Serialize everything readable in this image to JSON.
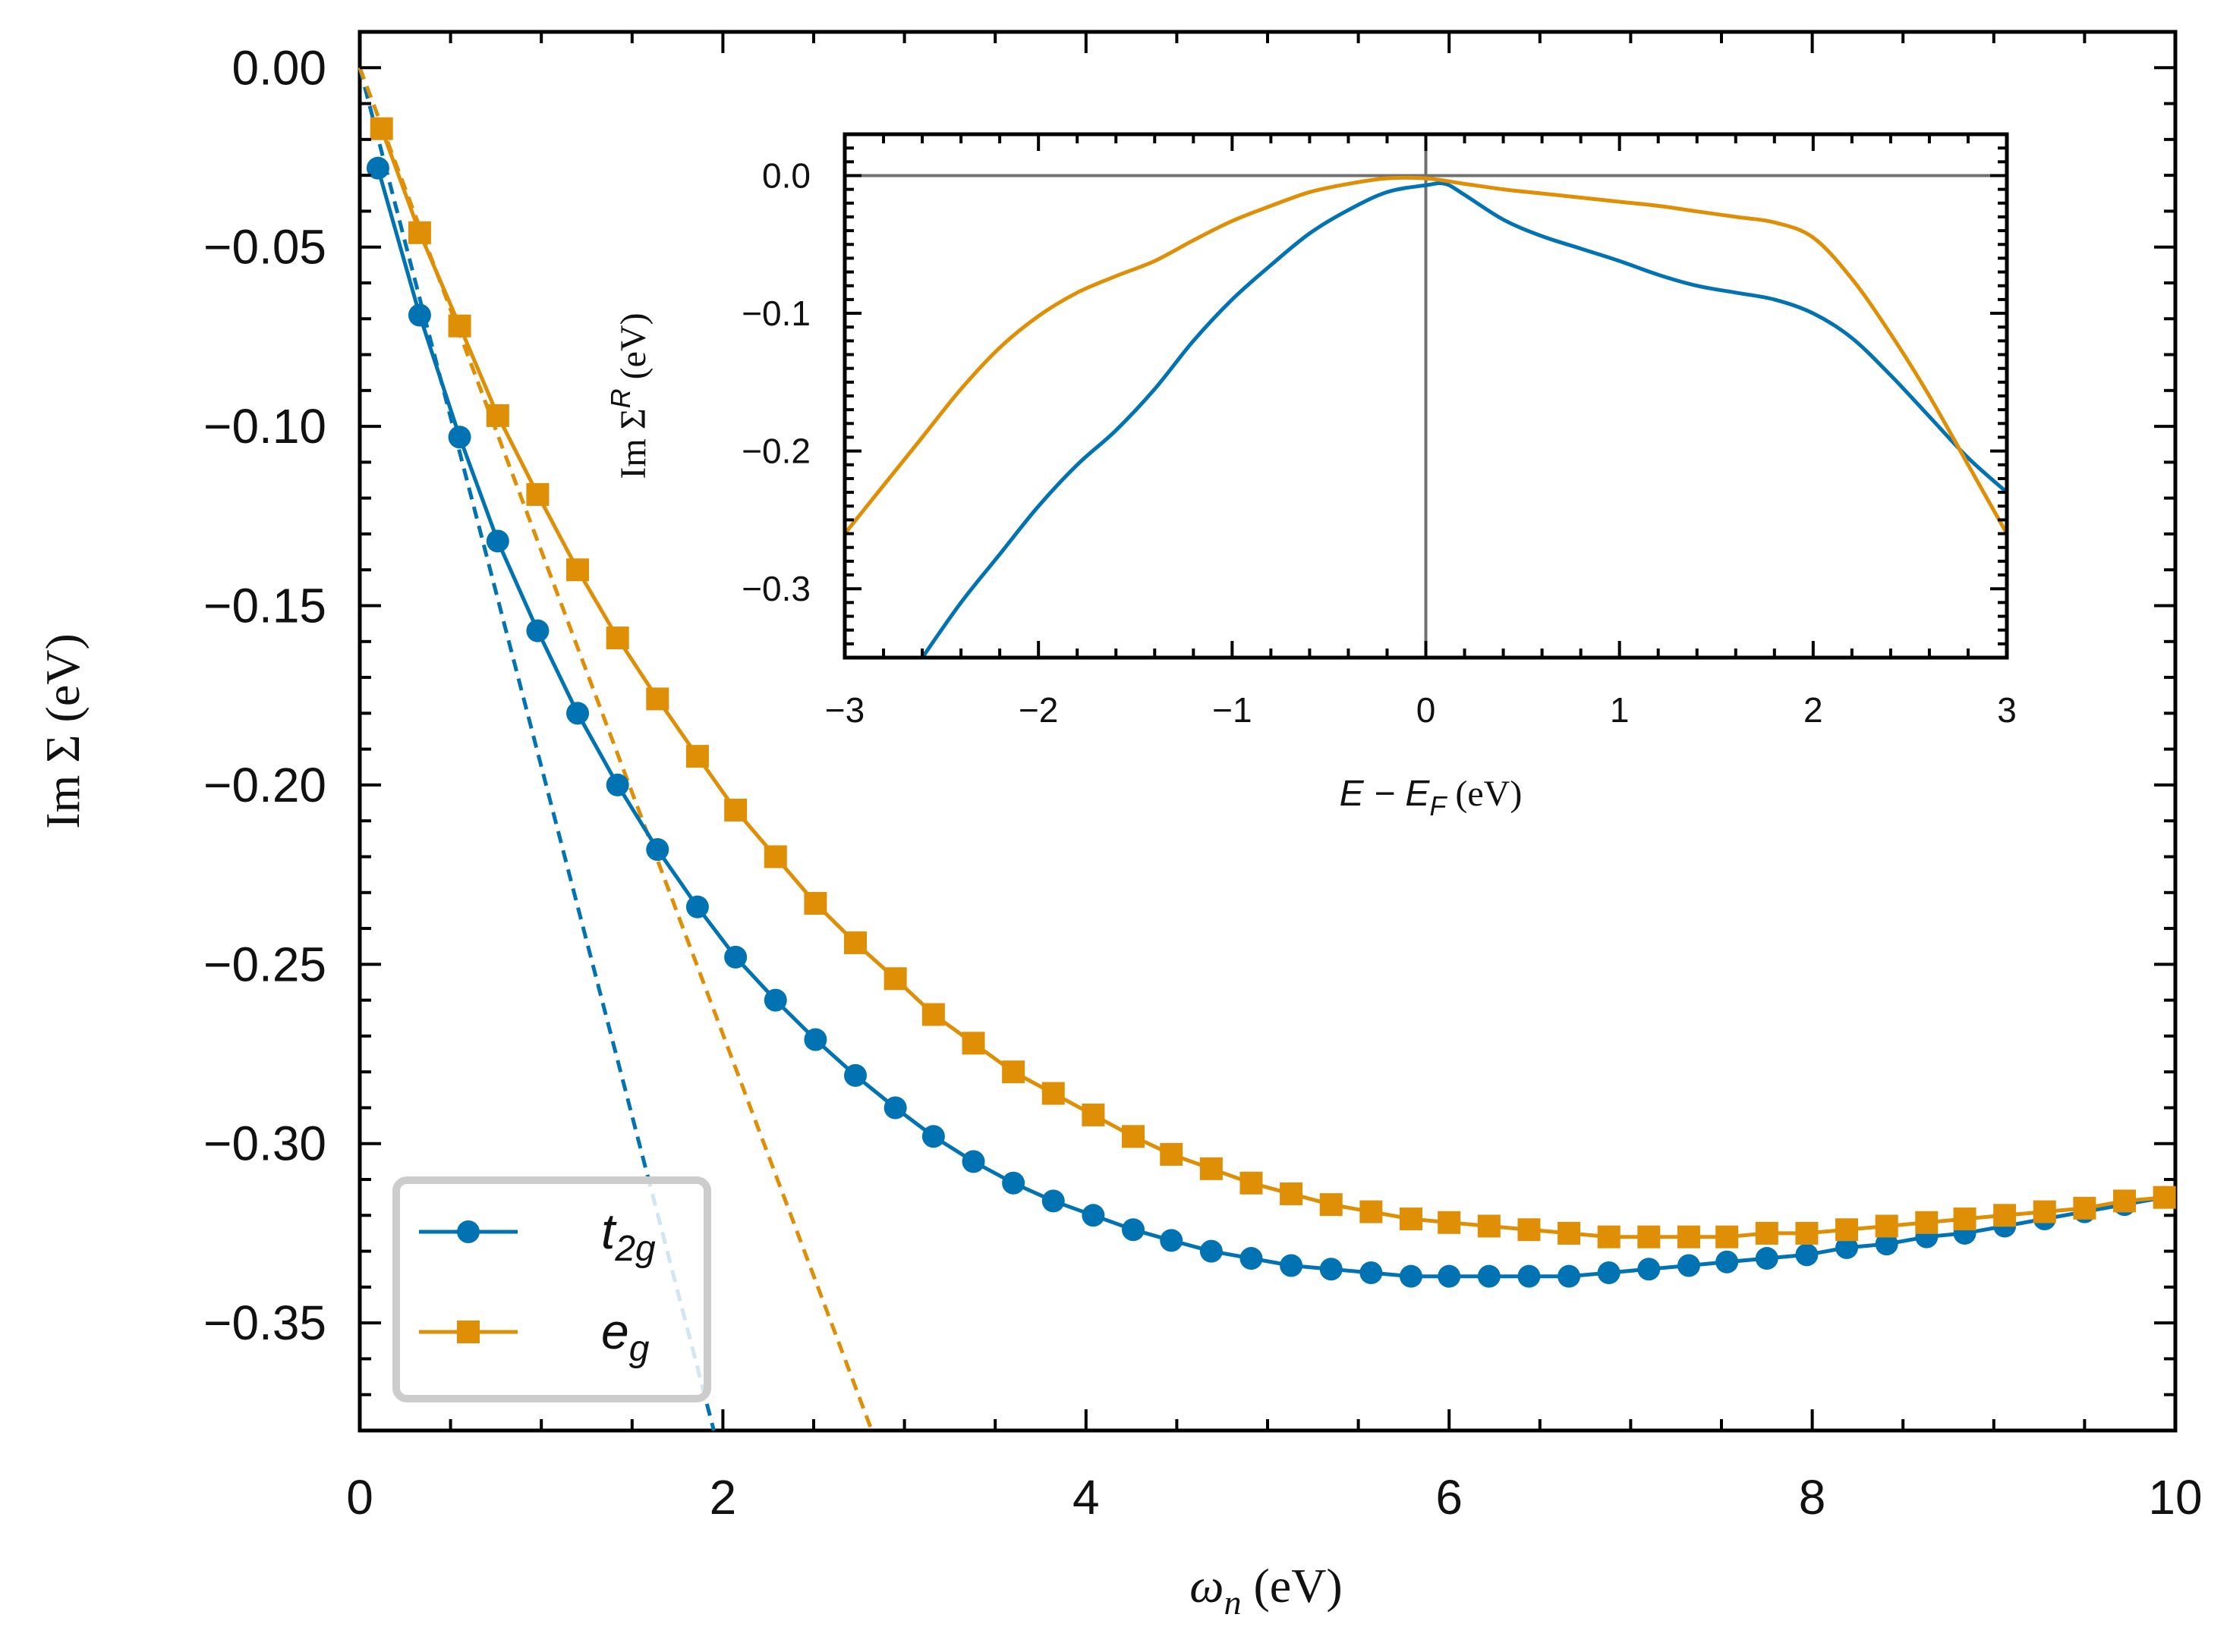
{
  "colors": {
    "t2g": "#0173b2",
    "eg": "#de8f05",
    "zero_lines": "#707070",
    "axes": "#000000"
  },
  "chart_data": [
    {
      "id": "main",
      "type": "line",
      "xlabel": {
        "symbol": "ω",
        "sub": "n",
        "unit": " (eV)"
      },
      "ylabel": "Im Σ (eV)",
      "xlim": [
        0,
        10
      ],
      "ylim": [
        -0.38,
        0.01
      ],
      "xticks": [
        0,
        2,
        4,
        6,
        8,
        10
      ],
      "xtick_labels": [
        "0",
        "2",
        "4",
        "6",
        "8",
        "10"
      ],
      "yticks": [
        0,
        -0.05,
        -0.1,
        -0.15,
        -0.2,
        -0.25,
        -0.3,
        -0.35
      ],
      "ytick_labels": [
        "0.00",
        "−0.05",
        "−0.10",
        "−0.15",
        "−0.20",
        "−0.25",
        "−0.30",
        "−0.35"
      ],
      "legend_position": "bottom-left",
      "series": [
        {
          "name": "t2g",
          "label_main": "t",
          "label_sub": "2g",
          "marker": "circle",
          "x": [
            0.1,
            0.33,
            0.55,
            0.76,
            0.98,
            1.2,
            1.42,
            1.64,
            1.86,
            2.07,
            2.29,
            2.51,
            2.73,
            2.95,
            3.16,
            3.38,
            3.6,
            3.82,
            4.04,
            4.26,
            4.47,
            4.69,
            4.91,
            5.13,
            5.35,
            5.57,
            5.79,
            6.0,
            6.22,
            6.44,
            6.66,
            6.88,
            7.1,
            7.32,
            7.53,
            7.75,
            7.97,
            8.19,
            8.41,
            8.63,
            8.84,
            9.06,
            9.28,
            9.5,
            9.72,
            9.94
          ],
          "values": [
            -0.028,
            -0.069,
            -0.103,
            -0.132,
            -0.157,
            -0.18,
            -0.2,
            -0.218,
            -0.234,
            -0.248,
            -0.26,
            -0.271,
            -0.281,
            -0.29,
            -0.298,
            -0.305,
            -0.311,
            -0.316,
            -0.32,
            -0.324,
            -0.327,
            -0.33,
            -0.332,
            -0.334,
            -0.335,
            -0.336,
            -0.337,
            -0.337,
            -0.337,
            -0.337,
            -0.337,
            -0.336,
            -0.335,
            -0.334,
            -0.333,
            -0.332,
            -0.331,
            -0.329,
            -0.328,
            -0.326,
            -0.325,
            -0.323,
            -0.321,
            -0.319,
            -0.317,
            -0.315
          ]
        },
        {
          "name": "eg",
          "label_main": "e",
          "label_sub": "g",
          "marker": "square",
          "x": [
            0.12,
            0.33,
            0.55,
            0.76,
            0.98,
            1.2,
            1.42,
            1.64,
            1.86,
            2.07,
            2.29,
            2.51,
            2.73,
            2.95,
            3.16,
            3.38,
            3.6,
            3.82,
            4.04,
            4.26,
            4.47,
            4.69,
            4.91,
            5.13,
            5.35,
            5.57,
            5.79,
            6.0,
            6.22,
            6.44,
            6.66,
            6.88,
            7.1,
            7.32,
            7.53,
            7.75,
            7.97,
            8.19,
            8.41,
            8.63,
            8.84,
            9.06,
            9.28,
            9.5,
            9.72,
            9.94
          ],
          "values": [
            -0.017,
            -0.046,
            -0.072,
            -0.097,
            -0.119,
            -0.14,
            -0.159,
            -0.176,
            -0.192,
            -0.207,
            -0.22,
            -0.233,
            -0.244,
            -0.254,
            -0.264,
            -0.272,
            -0.28,
            -0.286,
            -0.292,
            -0.298,
            -0.303,
            -0.307,
            -0.311,
            -0.314,
            -0.317,
            -0.319,
            -0.321,
            -0.322,
            -0.323,
            -0.324,
            -0.325,
            -0.326,
            -0.326,
            -0.326,
            -0.326,
            -0.325,
            -0.325,
            -0.324,
            -0.323,
            -0.322,
            -0.321,
            -0.32,
            -0.319,
            -0.318,
            -0.316,
            -0.315
          ]
        }
      ],
      "fits": [
        {
          "name": "t2g-fit",
          "series": "t2g",
          "x": [
            0,
            1.95
          ],
          "values": [
            0.0,
            -0.38
          ]
        },
        {
          "name": "eg-fit",
          "series": "eg",
          "x": [
            0,
            2.82
          ],
          "values": [
            0.0,
            -0.38
          ]
        }
      ]
    },
    {
      "id": "inset",
      "type": "line",
      "xlabel": {
        "text": "E − E",
        "sub": "F",
        "unit": " (eV)"
      },
      "ylabel": {
        "text": "Im Σ",
        "sup": "R",
        "unit": " (eV)"
      },
      "xlim": [
        -3,
        3
      ],
      "ylim": [
        -0.35,
        0.03
      ],
      "xticks": [
        -3,
        -2,
        -1,
        0,
        1,
        2,
        3
      ],
      "xtick_labels": [
        "−3",
        "−2",
        "−1",
        "0",
        "1",
        "2",
        "3"
      ],
      "yticks": [
        0.0,
        -0.1,
        -0.2,
        -0.3
      ],
      "ytick_labels": [
        "0.0",
        "−0.1",
        "−0.2",
        "−0.3"
      ],
      "series": [
        {
          "name": "t2g",
          "x": [
            -2.6,
            -2.4,
            -2.2,
            -2.0,
            -1.8,
            -1.6,
            -1.4,
            -1.2,
            -1.0,
            -0.8,
            -0.6,
            -0.4,
            -0.2,
            0.0,
            0.1,
            0.2,
            0.4,
            0.6,
            0.8,
            1.0,
            1.2,
            1.4,
            1.6,
            1.8,
            2.0,
            2.2,
            2.4,
            2.6,
            2.8,
            3.0
          ],
          "values": [
            -0.35,
            -0.31,
            -0.275,
            -0.24,
            -0.21,
            -0.185,
            -0.155,
            -0.12,
            -0.09,
            -0.065,
            -0.042,
            -0.025,
            -0.012,
            -0.007,
            -0.006,
            -0.014,
            -0.032,
            -0.044,
            -0.053,
            -0.062,
            -0.072,
            -0.08,
            -0.085,
            -0.09,
            -0.1,
            -0.118,
            -0.145,
            -0.175,
            -0.205,
            -0.23
          ]
        },
        {
          "name": "eg",
          "x": [
            -3.0,
            -2.8,
            -2.6,
            -2.4,
            -2.2,
            -2.0,
            -1.8,
            -1.6,
            -1.4,
            -1.2,
            -1.0,
            -0.8,
            -0.6,
            -0.4,
            -0.2,
            0.0,
            0.2,
            0.4,
            0.6,
            0.8,
            1.0,
            1.2,
            1.4,
            1.6,
            1.8,
            2.0,
            2.2,
            2.4,
            2.6,
            2.8,
            3.0
          ],
          "values": [
            -0.26,
            -0.225,
            -0.19,
            -0.155,
            -0.125,
            -0.102,
            -0.085,
            -0.073,
            -0.062,
            -0.047,
            -0.033,
            -0.022,
            -0.012,
            -0.006,
            -0.002,
            -0.002,
            -0.006,
            -0.01,
            -0.013,
            -0.016,
            -0.019,
            -0.022,
            -0.026,
            -0.03,
            -0.034,
            -0.045,
            -0.075,
            -0.115,
            -0.16,
            -0.21,
            -0.26
          ]
        }
      ]
    }
  ]
}
